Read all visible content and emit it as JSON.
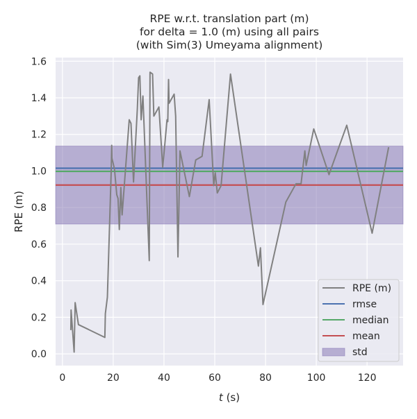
{
  "chart_data": {
    "type": "line",
    "title": [
      "RPE w.r.t. translation part (m)",
      "for delta = 1.0 (m) using all pairs",
      "(with Sim(3) Umeyama alignment)"
    ],
    "xlabel": "t (s)",
    "xlabel_italic": "t",
    "xlabel_unit": " (s)",
    "ylabel": "RPE (m)",
    "xlim": [
      -2.7,
      134.2
    ],
    "ylim": [
      -0.064,
      1.62
    ],
    "xticks": [
      0,
      20,
      40,
      60,
      80,
      100,
      120
    ],
    "yticks": [
      "0.0",
      "0.2",
      "0.4",
      "0.6",
      "0.8",
      "1.0",
      "1.2",
      "1.4",
      "1.6"
    ],
    "grid": true,
    "legend_position": "bottom-right",
    "series": [
      {
        "name": "RPE (m)",
        "color": "#808080",
        "x": [
          3.3,
          3.4,
          4.6,
          5,
          6.3,
          16.7,
          16.9,
          17.7,
          19.2,
          19.4,
          19.5,
          20.5,
          21.4,
          21.9,
          22.4,
          23,
          23.5,
          26.3,
          27,
          28,
          29.5,
          30,
          30.5,
          31,
          31.7,
          34.2,
          34.5,
          35.5,
          36,
          38,
          39.5,
          41.2,
          41.5,
          41.8,
          42,
          44,
          44.6,
          45.5,
          46.3,
          50,
          52.5,
          55,
          57.8,
          59.6,
          60.2,
          61,
          62.5,
          66.2,
          77.2,
          78,
          79,
          88,
          92,
          94,
          95.5,
          96,
          99,
          105,
          112,
          122,
          128.5
        ],
        "y": [
          0.13,
          0.24,
          0.01,
          0.28,
          0.16,
          0.09,
          0.22,
          0.31,
          1.0,
          1.14,
          1.07,
          1.01,
          0.87,
          0.85,
          0.68,
          0.91,
          0.76,
          1.28,
          1.26,
          0.94,
          1.34,
          1.51,
          1.52,
          1.28,
          1.41,
          0.51,
          1.54,
          1.53,
          1.3,
          1.35,
          1.02,
          1.28,
          1.27,
          1.5,
          1.37,
          1.42,
          1.3,
          0.53,
          1.11,
          0.86,
          1.06,
          1.08,
          1.39,
          0.92,
          0.99,
          0.88,
          0.92,
          1.53,
          0.48,
          0.58,
          0.27,
          0.83,
          0.93,
          0.93,
          1.11,
          1.03,
          1.23,
          0.98,
          1.25,
          0.66,
          1.13
        ]
      }
    ],
    "stats": {
      "rmse": 1.015,
      "median": 0.998,
      "mean": 0.923,
      "std": 0.213
    },
    "legend": [
      {
        "label": "RPE (m)",
        "color": "#808080",
        "kind": "line"
      },
      {
        "label": "rmse",
        "color": "#4c72b0",
        "kind": "line"
      },
      {
        "label": "median",
        "color": "#55a868",
        "kind": "line"
      },
      {
        "label": "mean",
        "color": "#c44e52",
        "kind": "line"
      },
      {
        "label": "std",
        "color": "#8172b2",
        "kind": "patch"
      }
    ]
  }
}
